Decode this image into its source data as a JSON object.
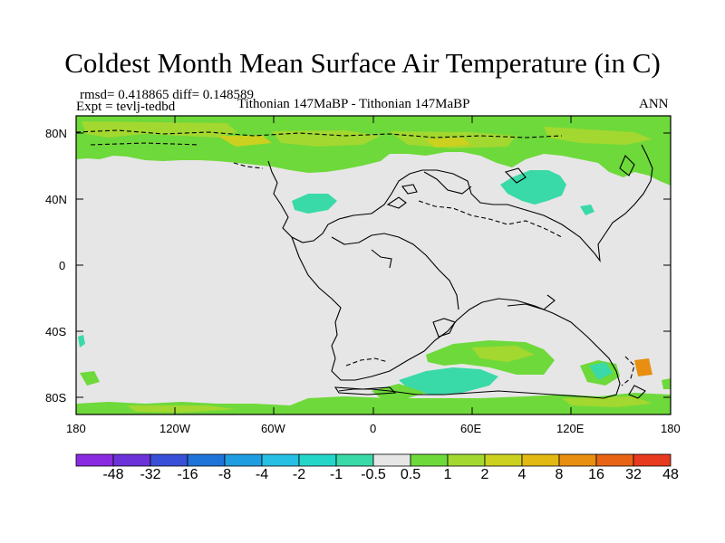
{
  "title": "Coldest Month Mean Surface Air Temperature (in C)",
  "stats": "rmsd= 0.418865 diff= 0.148589",
  "expt": "Expt = tevlj-tedbd",
  "comparison": "Tithonian 147MaBP - Tithonian 147MaBP",
  "period": "ANN",
  "lat_labels": [
    "80N",
    "40N",
    "0",
    "40S",
    "80S"
  ],
  "lon_labels": [
    "180",
    "120W",
    "60W",
    "0",
    "60E",
    "120E",
    "180"
  ],
  "colorbar": {
    "labels": [
      "-48",
      "-32",
      "-16",
      "-8",
      "-4",
      "-2",
      "-1",
      "-0.5",
      "0.5",
      "1",
      "2",
      "4",
      "8",
      "16",
      "32",
      "48"
    ],
    "colors": [
      "#8a2be2",
      "#6a32d8",
      "#3a4fd8",
      "#1e74d8",
      "#1e9ee0",
      "#27c0e4",
      "#24d6c8",
      "#3ad9a8",
      "#e6e6e6",
      "#6ed93a",
      "#a2d830",
      "#cbd11e",
      "#e2b812",
      "#e88e10",
      "#e86414",
      "#e83a1e"
    ]
  },
  "map": {
    "background": "#e6e6e6",
    "land_line": "#000000"
  }
}
